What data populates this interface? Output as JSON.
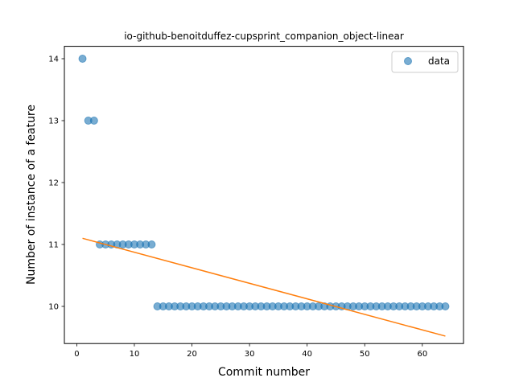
{
  "chart_data": {
    "type": "scatter",
    "title": "io-github-benoitduffez-cupsprint_companion_object-linear",
    "xlabel": "Commit number",
    "ylabel": "Number of instance of a feature",
    "xlim": [
      -2.15,
      67.15
    ],
    "ylim": [
      9.4,
      14.2
    ],
    "xticks": [
      0,
      10,
      20,
      30,
      40,
      50,
      60
    ],
    "yticks": [
      10,
      11,
      12,
      13,
      14
    ],
    "grid": false,
    "legend": {
      "position": "top-right",
      "entries": [
        "data"
      ]
    },
    "series": [
      {
        "name": "data",
        "kind": "scatter",
        "color": "#1f77b4",
        "x": [
          1,
          2,
          3,
          4,
          5,
          6,
          7,
          8,
          9,
          10,
          11,
          12,
          13,
          14,
          15,
          16,
          17,
          18,
          19,
          20,
          21,
          22,
          23,
          24,
          25,
          26,
          27,
          28,
          29,
          30,
          31,
          32,
          33,
          34,
          35,
          36,
          37,
          38,
          39,
          40,
          41,
          42,
          43,
          44,
          45,
          46,
          47,
          48,
          49,
          50,
          51,
          52,
          53,
          54,
          55,
          56,
          57,
          58,
          59,
          60,
          61,
          62,
          63,
          64
        ],
        "y": [
          14,
          13,
          13,
          11,
          11,
          11,
          11,
          11,
          11,
          11,
          11,
          11,
          11,
          10,
          10,
          10,
          10,
          10,
          10,
          10,
          10,
          10,
          10,
          10,
          10,
          10,
          10,
          10,
          10,
          10,
          10,
          10,
          10,
          10,
          10,
          10,
          10,
          10,
          10,
          10,
          10,
          10,
          10,
          10,
          10,
          10,
          10,
          10,
          10,
          10,
          10,
          10,
          10,
          10,
          10,
          10,
          10,
          10,
          10,
          10,
          10,
          10,
          10,
          10
        ]
      },
      {
        "kind": "line",
        "color": "#ff7f0e",
        "x": [
          1,
          64
        ],
        "y": [
          11.1,
          9.52
        ]
      }
    ]
  }
}
